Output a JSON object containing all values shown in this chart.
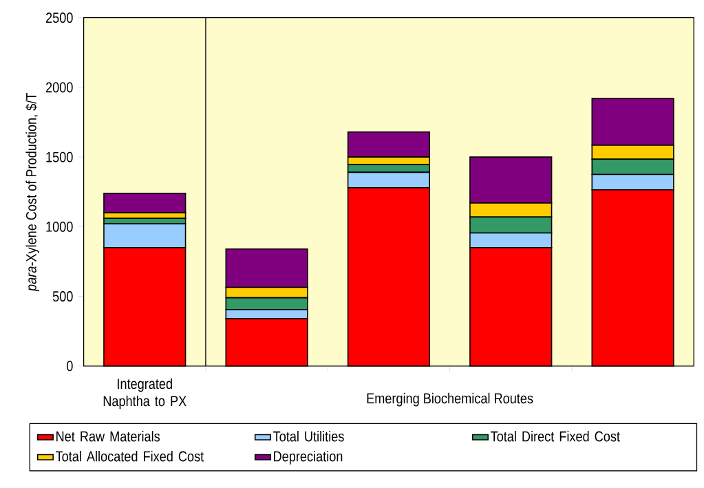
{
  "chart_data": {
    "type": "bar",
    "stacked": true,
    "ylabel": "*para*-Xylene Cost of Production, $/T",
    "categories": [
      "Integrated Naphtha to PX",
      null,
      null,
      null,
      null
    ],
    "series": [
      {
        "name": "Net Raw Materials",
        "color": "#ff0000",
        "values": [
          850,
          340,
          1280,
          850,
          1265
        ]
      },
      {
        "name": "Total Utilities",
        "color": "#99ccff",
        "values": [
          170,
          65,
          110,
          105,
          110
        ]
      },
      {
        "name": "Total Direct Fixed Cost",
        "color": "#339966",
        "values": [
          40,
          85,
          55,
          115,
          110
        ]
      },
      {
        "name": "Total Allocated Fixed Cost",
        "color": "#ffcc00",
        "values": [
          40,
          75,
          55,
          100,
          100
        ]
      },
      {
        "name": "Depreciation",
        "color": "#800080",
        "values": [
          140,
          275,
          180,
          330,
          335
        ]
      }
    ],
    "ylim": [
      0,
      2500
    ],
    "yticks": [
      0,
      500,
      1000,
      1500,
      2000,
      2500
    ],
    "annotations": [
      "Emerging Biochemical Routes"
    ],
    "legend": "bottom",
    "grid": false
  }
}
